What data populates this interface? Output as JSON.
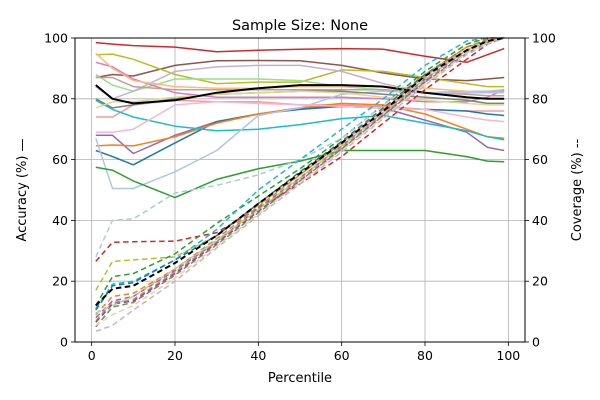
{
  "chart_data": {
    "type": "line",
    "title": "Sample Size: None",
    "xlabel": "Percentile",
    "ylabel_left": "Accuracy (%) —",
    "ylabel_right": "Coverage (%) --",
    "xlim": [
      -4,
      104
    ],
    "ylim_left": [
      0,
      100
    ],
    "ylim_right": [
      0,
      100
    ],
    "xticks": [
      0,
      20,
      40,
      60,
      80,
      100
    ],
    "yticks_left": [
      0,
      20,
      40,
      60,
      80,
      100
    ],
    "yticks_right": [
      0,
      20,
      40,
      60,
      80,
      100
    ],
    "grid": true,
    "x": [
      1,
      5,
      10,
      20,
      30,
      40,
      50,
      60,
      70,
      80,
      90,
      95,
      99
    ],
    "accuracy_series": [
      {
        "color": "#d62728",
        "values": [
          98.5,
          98,
          97.5,
          97,
          95.5,
          96,
          96.3,
          96.5,
          96.3,
          94,
          92,
          94.5,
          96.5
        ]
      },
      {
        "color": "#8c564b",
        "values": [
          87,
          88,
          87.5,
          91,
          92.5,
          92.6,
          92.5,
          91,
          88.5,
          86.5,
          86,
          86.5,
          87
        ]
      },
      {
        "color": "#bcbd22",
        "values": [
          94.5,
          94.7,
          93,
          88,
          85,
          85.5,
          85.5,
          89.5,
          89,
          87,
          85,
          84,
          84
        ]
      },
      {
        "color": "#98df8a",
        "values": [
          88,
          84.5,
          82.5,
          86.5,
          86.5,
          86.5,
          86,
          84,
          83,
          82,
          82,
          82.5,
          83
        ]
      },
      {
        "color": "#e377c2",
        "values": [
          92,
          90.5,
          86.5,
          82,
          80.5,
          80.5,
          80.5,
          80.5,
          80,
          79,
          79,
          80.5,
          83
        ]
      },
      {
        "color": "#c5b0d5",
        "values": [
          84,
          80,
          82.5,
          89,
          90.5,
          91,
          91,
          89,
          85,
          82,
          82.5,
          82.5,
          82.5
        ]
      },
      {
        "color": "#ffbb78",
        "values": [
          95,
          90,
          86,
          84,
          83.5,
          83.5,
          84,
          84,
          84,
          83.5,
          82.5,
          82,
          82
        ]
      },
      {
        "color": "#c49c94",
        "values": [
          87,
          87,
          84,
          83,
          83,
          83,
          83,
          83,
          83,
          82,
          81.5,
          81,
          81
        ]
      },
      {
        "color": "#9467bd",
        "values": [
          68,
          68,
          62,
          68,
          72.5,
          75,
          77,
          77.5,
          77,
          73,
          69,
          64,
          63
        ]
      },
      {
        "color": "#ff9896",
        "values": [
          74,
          74,
          78,
          79.5,
          79,
          79,
          78,
          78,
          77.5,
          76.5,
          76,
          76,
          76
        ]
      },
      {
        "color": "#1f77b4",
        "values": [
          63,
          61,
          58.3,
          65.5,
          72.5,
          75,
          76.5,
          77.5,
          77,
          76.5,
          76,
          75,
          74.5
        ]
      },
      {
        "color": "#ff7f0e",
        "values": [
          64.5,
          64.8,
          64.5,
          67.5,
          72,
          75,
          77,
          78.5,
          78,
          75,
          70,
          67.5,
          67
        ]
      },
      {
        "color": "#17becf",
        "values": [
          79.5,
          76.5,
          74,
          71,
          69.5,
          70,
          71.5,
          73.5,
          74.5,
          72,
          69.5,
          67.5,
          66.5
        ]
      },
      {
        "color": "#aec7e8",
        "values": [
          67,
          50.5,
          50.5,
          56,
          63,
          74.5,
          77,
          81.5,
          82.5,
          82,
          82,
          82,
          82
        ]
      },
      {
        "color": "#7f7f7f",
        "values": [
          80,
          77,
          78,
          80,
          81.5,
          82,
          82.5,
          82.5,
          81.5,
          80.5,
          79.5,
          78.5,
          78.5
        ]
      },
      {
        "color": "#dbdb8d",
        "values": [
          77,
          79,
          79,
          80.5,
          81.5,
          82,
          82.5,
          82,
          80.5,
          79.5,
          78.5,
          78,
          78
        ]
      },
      {
        "color": "#2ca02c",
        "values": [
          57.5,
          56.5,
          53,
          47.5,
          53.5,
          57,
          59.5,
          63,
          63,
          63,
          61,
          59.5,
          59.3
        ]
      },
      {
        "color": "#f7b6d2",
        "values": [
          69,
          69,
          70,
          78,
          79,
          78.5,
          78,
          77.5,
          77,
          76.5,
          74,
          73,
          72.5
        ]
      },
      {
        "color": "#000000",
        "values": [
          84.5,
          80,
          78.5,
          79.5,
          82,
          83.5,
          84.5,
          84.5,
          84,
          82,
          80.5,
          80,
          80
        ]
      }
    ],
    "coverage_series": [
      {
        "color": "#d62728",
        "values": [
          26.5,
          32.8,
          33,
          33.2,
          36,
          44,
          52,
          61,
          72,
          83,
          93,
          98,
          100
        ]
      },
      {
        "color": "#bcbd22",
        "values": [
          17,
          26.5,
          27,
          28,
          35,
          45,
          55,
          65,
          76,
          88,
          97,
          99,
          100
        ]
      },
      {
        "color": "#2ca02c",
        "values": [
          12,
          21.5,
          22.5,
          29,
          39,
          48,
          57,
          67,
          78,
          89,
          98,
          100,
          100
        ]
      },
      {
        "color": "#aec7e8",
        "values": [
          28,
          40,
          40.5,
          49,
          51.5,
          55,
          60,
          67,
          78,
          88,
          96,
          99,
          100
        ]
      },
      {
        "color": "#17becf",
        "values": [
          11,
          19,
          20,
          27,
          37,
          50,
          60,
          70,
          80,
          91,
          99,
          100,
          100
        ]
      },
      {
        "color": "#1f77b4",
        "values": [
          10.5,
          18.5,
          19.5,
          27,
          35,
          45.5,
          56,
          66,
          77,
          88,
          97,
          99.5,
          100
        ]
      },
      {
        "color": "#ff7f0e",
        "values": [
          9,
          15,
          16,
          24,
          34,
          44.5,
          55,
          65.5,
          76.5,
          87.5,
          97,
          99.5,
          100
        ]
      },
      {
        "color": "#9467bd",
        "values": [
          8,
          13.5,
          15,
          23.5,
          33,
          44,
          54,
          64.5,
          75.5,
          86.5,
          96,
          99,
          100
        ]
      },
      {
        "color": "#e377c2",
        "values": [
          7,
          13,
          14,
          23,
          33,
          43.5,
          53.5,
          64,
          75,
          86,
          95.5,
          99,
          100
        ]
      },
      {
        "color": "#8c564b",
        "values": [
          6.5,
          12.5,
          13.5,
          22.5,
          32.5,
          43,
          53,
          63.5,
          74.5,
          85.5,
          95,
          98.5,
          100
        ]
      },
      {
        "color": "#7f7f7f",
        "values": [
          5,
          11.5,
          13,
          22,
          32,
          42.5,
          53,
          63.5,
          74.5,
          85.5,
          95,
          98.5,
          100
        ]
      },
      {
        "color": "#c5b0d5",
        "values": [
          3.5,
          5.5,
          10.5,
          20,
          31,
          41.5,
          52,
          62.5,
          73.5,
          84.5,
          94.5,
          98,
          100
        ]
      },
      {
        "color": "#dbdb8d",
        "values": [
          5.5,
          9,
          12,
          21,
          31.5,
          42,
          52.5,
          63,
          74,
          85,
          95,
          98.5,
          100
        ]
      },
      {
        "color": "#98df8a",
        "values": [
          9.5,
          12,
          15,
          24,
          33.5,
          43.5,
          54,
          64.5,
          75.5,
          86.5,
          96,
          99,
          100
        ]
      },
      {
        "color": "#000000",
        "values": [
          12,
          17.5,
          18.5,
          26,
          35,
          45.5,
          55.5,
          65.5,
          76,
          87.5,
          96,
          99,
          100
        ]
      }
    ]
  }
}
